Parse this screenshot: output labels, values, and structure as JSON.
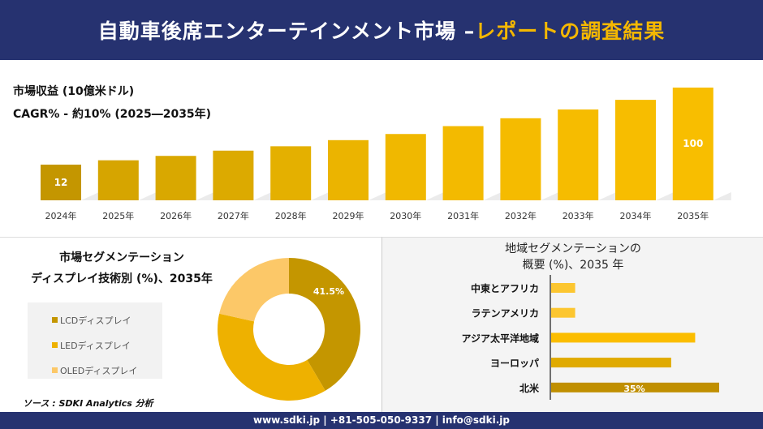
{
  "header": {
    "title_main": "自動車後席エンターテインメント市場 –",
    "title_highlight": "レポートの調査結果"
  },
  "colors": {
    "navy": "#263270",
    "accent": "#f5b800"
  },
  "revenue": {
    "title": "市場収益 (10億米ドル)",
    "cagr": "CAGR% - 約10% (2025―2035年)"
  },
  "segment": {
    "title_line1": "市場セグメンテーション",
    "title_line2": "ディスプレイ技術別 (%)、2035年"
  },
  "region": {
    "title_line1": "地域セグメンテーションの",
    "title_line2": "概要 (%)、2035 年"
  },
  "source": "ソース : SDKI Analytics 分析",
  "footer": "www.sdki.jp | +81-505-050-9337 | info@sdki.jp",
  "chart_data": [
    {
      "type": "bar",
      "title": "市場収益 (10億米ドル)",
      "categories": [
        "2024年",
        "2025年",
        "2026年",
        "2027年",
        "2028年",
        "2029年",
        "2030年",
        "2031年",
        "2032年",
        "2033年",
        "2034年",
        "2035年"
      ],
      "values": [
        12,
        17,
        22,
        28,
        33,
        40,
        47,
        56,
        65,
        75,
        86,
        100
      ],
      "data_labels": {
        "0": "12",
        "11": "100"
      },
      "colors": [
        "#c49600",
        "#d6a500",
        "#d9a800",
        "#dcaa00",
        "#e4b000",
        "#ebb400",
        "#f0b800",
        "#f3ba00",
        "#f5bb00",
        "#f6bc00",
        "#f7bd00",
        "#f8be00"
      ]
    },
    {
      "type": "pie",
      "donut": true,
      "labels": [
        "LCDディスプレイ",
        "LEDディスプレイ",
        "OLEDディスプレイ"
      ],
      "values": [
        41.5,
        37,
        21.5
      ],
      "data_labels": {
        "0": "41.5%"
      },
      "colors": [
        "#c49600",
        "#eeb100",
        "#fcc868"
      ],
      "legend": "left"
    },
    {
      "type": "bar",
      "orientation": "horizontal",
      "categories": [
        "中東とアフリカ",
        "ラテンアメリカ",
        "アジア太平洋地域",
        "ヨーロッパ",
        "北米"
      ],
      "values": [
        5,
        5,
        30,
        25,
        35
      ],
      "data_labels": {
        "4": "35%"
      },
      "colors": [
        "#fcc630",
        "#fcc630",
        "#fbbd00",
        "#e0aa00",
        "#c08f00"
      ]
    }
  ]
}
